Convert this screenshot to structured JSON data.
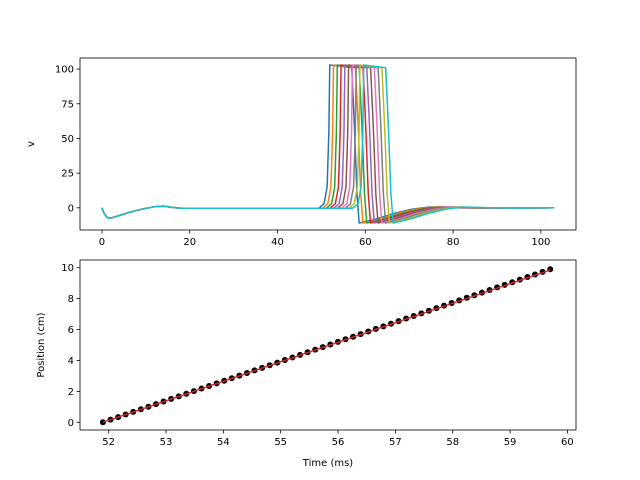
{
  "chart_data": [
    {
      "type": "line",
      "title": "",
      "xlabel": "",
      "ylabel": "v",
      "xlim": [
        -5,
        108
      ],
      "ylim": [
        -16,
        108
      ],
      "xticks": [
        0,
        20,
        40,
        60,
        80,
        100
      ],
      "yticks": [
        0,
        25,
        50,
        75,
        100
      ],
      "grid": false,
      "legend": "none",
      "description": "Membrane voltage traces for 10 compartments; each shows an action potential shifted ~0.85 ms later than the previous",
      "series_template": {
        "x_end": 103,
        "baseline": [
          [
            0,
            0
          ],
          [
            0.5,
            -4
          ],
          [
            1.2,
            -7
          ],
          [
            2,
            -7.5
          ],
          [
            3.5,
            -6
          ],
          [
            6,
            -3.5
          ],
          [
            9,
            -1
          ],
          [
            12,
            0.8
          ],
          [
            14,
            1.2
          ],
          [
            16,
            0.3
          ],
          [
            18,
            -0.3
          ],
          [
            22,
            -0.3
          ]
        ],
        "spike_rise_start_offset": -2.5,
        "spike_peak": 103,
        "spike_width": 6.6,
        "undershoot": -11,
        "recovery": [
          [
            0,
            -11
          ],
          [
            4,
            -8
          ],
          [
            8,
            -4
          ],
          [
            12,
            -1
          ],
          [
            16,
            0.6
          ],
          [
            22,
            0
          ],
          [
            28,
            -0.2
          ]
        ]
      },
      "series": [
        {
          "spike_time": 51.9,
          "color": "#1f77b4"
        },
        {
          "spike_time": 52.76,
          "color": "#ff7f0e"
        },
        {
          "spike_time": 53.62,
          "color": "#2ca02c"
        },
        {
          "spike_time": 54.48,
          "color": "#d62728"
        },
        {
          "spike_time": 55.34,
          "color": "#9467bd"
        },
        {
          "spike_time": 56.2,
          "color": "#8c564b"
        },
        {
          "spike_time": 57.06,
          "color": "#e377c2"
        },
        {
          "spike_time": 57.92,
          "color": "#7f7f7f"
        },
        {
          "spike_time": 58.78,
          "color": "#bcbd22"
        },
        {
          "spike_time": 59.64,
          "color": "#17becf"
        }
      ]
    },
    {
      "type": "scatter",
      "title": "",
      "xlabel": "Time (ms)",
      "ylabel": "Position (cm)",
      "xlim": [
        51.5,
        60.15
      ],
      "ylim": [
        -0.5,
        10.5
      ],
      "xticks": [
        52,
        53,
        54,
        55,
        56,
        57,
        58,
        59,
        60
      ],
      "yticks": [
        0,
        2,
        4,
        6,
        8,
        10
      ],
      "grid": false,
      "legend": "none",
      "points_color": "#000000",
      "fit_color": "#d62728",
      "points": {
        "x_start": 51.9,
        "x_end": 59.7,
        "y_start": 0.0,
        "y_end": 9.9,
        "count": 60
      },
      "fit_line": {
        "x": [
          51.9,
          59.7
        ],
        "y": [
          0.0,
          9.85
        ]
      }
    }
  ]
}
